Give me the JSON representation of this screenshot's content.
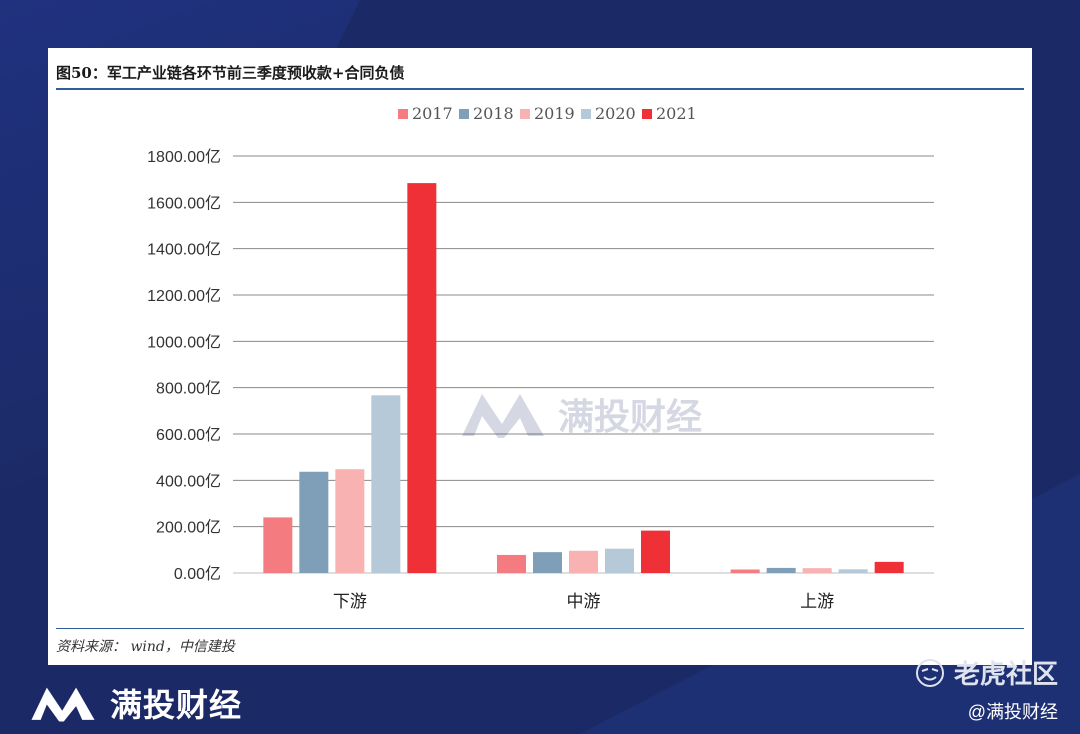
{
  "chart_data": {
    "type": "bar",
    "title": "图50：军工产业链各环节前三季度预收款+合同负债",
    "categories": [
      "下游",
      "中游",
      "上游"
    ],
    "series": [
      {
        "name": "2017",
        "color": "#f47b7f",
        "values": [
          240,
          78,
          15
        ]
      },
      {
        "name": "2018",
        "color": "#7f9fb8",
        "values": [
          437,
          90,
          22
        ]
      },
      {
        "name": "2019",
        "color": "#f9b2b2",
        "values": [
          448,
          96,
          21
        ]
      },
      {
        "name": "2020",
        "color": "#b6c9d9",
        "values": [
          767,
          105,
          16
        ]
      },
      {
        "name": "2021",
        "color": "#ef3037",
        "values": [
          1683,
          183,
          48
        ]
      }
    ],
    "ylim": [
      0,
      1800
    ],
    "yticks": [
      "0.00亿",
      "200.00亿",
      "400.00亿",
      "600.00亿",
      "800.00亿",
      "1000.00亿",
      "1200.00亿",
      "1400.00亿",
      "1600.00亿",
      "1800.00亿"
    ],
    "legend_position": "top-center",
    "grid": true
  },
  "source": "资料来源： wind，中信建投",
  "watermark": "满投财经",
  "footer": {
    "brand": "满投财经",
    "community": "老虎社区",
    "handle": "@满投财经"
  }
}
